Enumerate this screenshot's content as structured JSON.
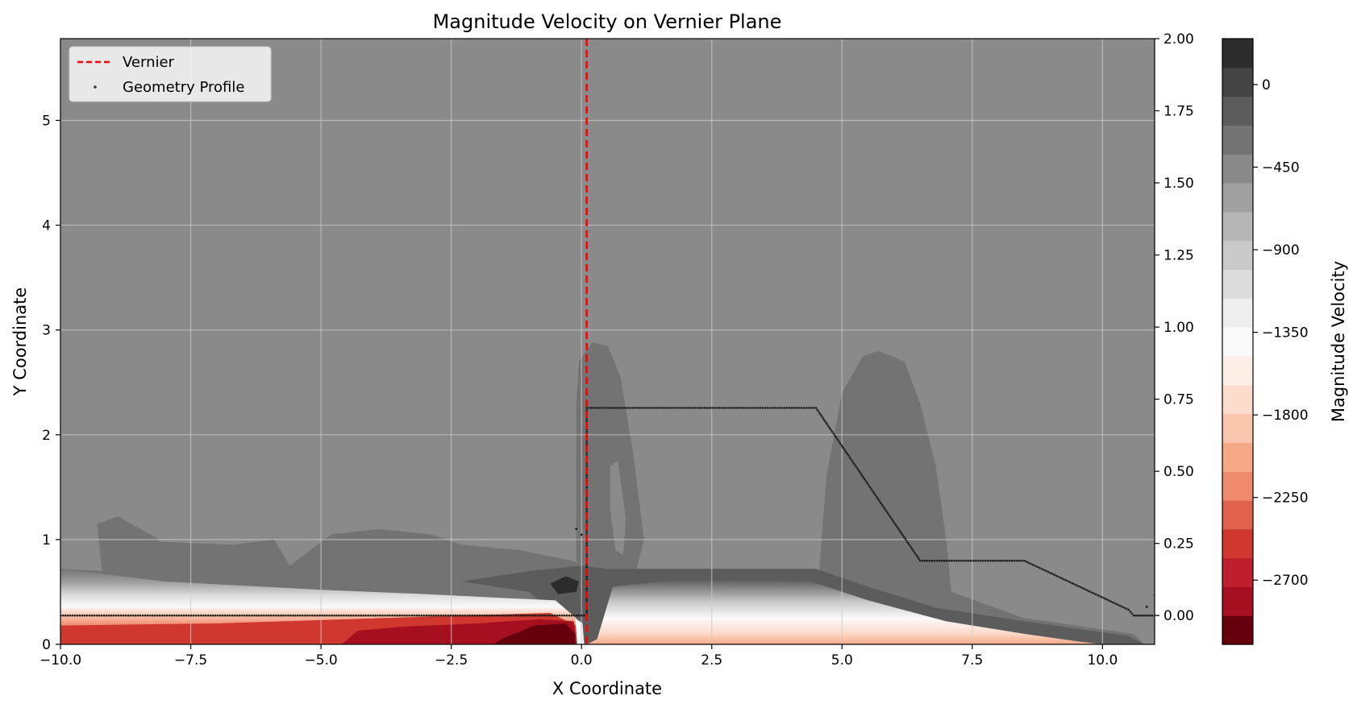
{
  "chart_data": {
    "type": "contour",
    "title": "Magnitude Velocity on Vernier Plane",
    "xlabel": "X Coordinate",
    "ylabel": "Y Coordinate",
    "colorbar_label": "Magnitude Velocity",
    "xlim": [
      -10,
      11
    ],
    "ylim": [
      0,
      5.78
    ],
    "xticks": [
      "−10.0",
      "−7.5",
      "−5.0",
      "−2.5",
      "0.0",
      "2.5",
      "5.0",
      "7.5",
      "10.0"
    ],
    "xtick_values": [
      -10,
      -7.5,
      -5,
      -2.5,
      0,
      2.5,
      5,
      7.5,
      10
    ],
    "yticks": [
      "0",
      "1",
      "2",
      "3",
      "4",
      "5"
    ],
    "ytick_values": [
      0,
      1,
      2,
      3,
      4,
      5
    ],
    "y2lim": [
      -0.1,
      2.0
    ],
    "y2ticks": [
      "0.00",
      "0.25",
      "0.50",
      "0.75",
      "1.00",
      "1.25",
      "1.50",
      "1.75",
      "2.00"
    ],
    "y2tick_values": [
      0,
      0.25,
      0.5,
      0.75,
      1.0,
      1.25,
      1.5,
      1.75,
      2.0
    ],
    "colorbar_range": [
      -3050,
      250
    ],
    "colorbar_ticks": [
      "0",
      "−450",
      "−900",
      "−1350",
      "−1800",
      "−2250",
      "−2700"
    ],
    "colorbar_tick_values": [
      0,
      -450,
      -900,
      -1350,
      -1800,
      -2250,
      -2700
    ],
    "colorbar_level_colors": [
      "#67000d",
      "#a50f20",
      "#be1e2d",
      "#d0382f",
      "#e0614d",
      "#ef8a6e",
      "#f6a986",
      "#f9c5ac",
      "#fcdccc",
      "#fdefe6",
      "#fafafa",
      "#eeeeee",
      "#dcdcdc",
      "#cacaca",
      "#b6b6b6",
      "#a0a0a0",
      "#8a8a8a",
      "#737373",
      "#5c5c5c",
      "#444444",
      "#2c2c2c"
    ],
    "grid": true,
    "legend_position": "upper-left",
    "legend": [
      {
        "label": "Vernier",
        "style": "red-dashed-line",
        "color": "#ff0000"
      },
      {
        "label": "Geometry Profile",
        "style": "dot-marker",
        "color": "#222222"
      }
    ],
    "vernier_x": 0.1,
    "geometry_profile": {
      "axis": "secondary",
      "points": [
        [
          -10,
          0.0
        ],
        [
          -0.05,
          0.0
        ],
        [
          0.1,
          0.0
        ],
        [
          0.1,
          0.72
        ],
        [
          4.5,
          0.72
        ],
        [
          6.5,
          0.19
        ],
        [
          8.5,
          0.19
        ],
        [
          10.5,
          0.02
        ],
        [
          10.6,
          0.0
        ],
        [
          11.0,
          0.0
        ]
      ],
      "extra_points": [
        [
          -0.1,
          0.3
        ],
        [
          0.0,
          0.28
        ],
        [
          10.85,
          0.03
        ],
        [
          11.0,
          0.07
        ]
      ]
    },
    "field_regions": [
      {
        "level": -380,
        "color": "#8a8a8a",
        "region": "background"
      },
      {
        "level": -320,
        "color": "#737373",
        "region": "lower-band"
      },
      {
        "level": -200,
        "color": "#5c5c5c",
        "region": "near-wall-dark"
      },
      {
        "level": 100,
        "color": "#2c2c2c",
        "region": "blob-near-origin"
      },
      {
        "level": -1350,
        "color": "#fafafa",
        "region": "shear-layer"
      },
      {
        "level": -2300,
        "color": "#d0382f",
        "region": "jet-core-upstream"
      },
      {
        "level": -2900,
        "color": "#a50f20",
        "region": "jet-core-peak"
      }
    ]
  }
}
